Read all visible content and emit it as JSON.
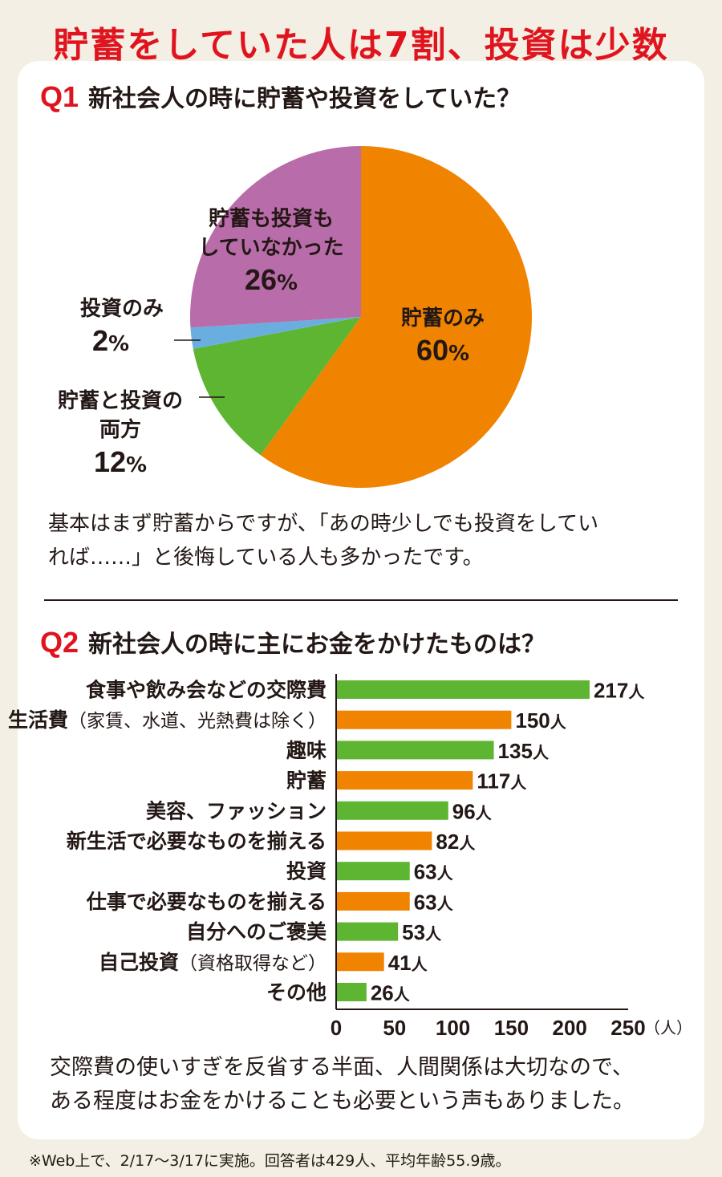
{
  "title": "貯蓄をしていた人は7割、投資は少数",
  "q1": {
    "num": "Q1",
    "text": "新社会人の時に貯蓄や投資をしていた？",
    "note_lines": [
      "基本はまず貯蓄からですが、「あの時少しでも投資をしてい",
      "れば……」と後悔している人も多かったです。"
    ]
  },
  "q2": {
    "num": "Q2",
    "text": "新社会人の時に主にお金をかけたものは？",
    "note_lines": [
      "交際費の使いすぎを反省する半面、人間関係は大切なので、",
      "ある程度はお金をかけることも必要という声もありました。"
    ]
  },
  "footnote": "※Web上で、2/17〜3/17に実施。回答者は429人、平均年齢55.9歳。",
  "chart_data": [
    {
      "type": "pie",
      "unit": "%",
      "slices": [
        {
          "label_lines": [
            "貯蓄のみ"
          ],
          "value": 60,
          "pct_text": "60",
          "color": "#f08300"
        },
        {
          "label_lines": [
            "貯蓄と投資の",
            "両方"
          ],
          "value": 12,
          "pct_text": "12",
          "color": "#5db531"
        },
        {
          "label_lines": [
            "投資のみ"
          ],
          "value": 2,
          "pct_text": "2",
          "color": "#6aaee0"
        },
        {
          "label_lines": [
            "貯蓄も投資も",
            "していなかった"
          ],
          "value": 26,
          "pct_text": "26",
          "color": "#b86ca9"
        }
      ]
    },
    {
      "type": "bar",
      "orientation": "horizontal",
      "unit": "人",
      "axis_unit": "（人）",
      "xlim": [
        0,
        250
      ],
      "ticks": [
        0,
        50,
        100,
        150,
        200,
        250
      ],
      "colors": [
        "#5db531",
        "#f08300"
      ],
      "categories": [
        {
          "main": "食事や飲み会などの交際費",
          "sub": ""
        },
        {
          "main": "生活費",
          "sub": "（家賃、水道、光熱費は除く）"
        },
        {
          "main": "趣味",
          "sub": ""
        },
        {
          "main": "貯蓄",
          "sub": ""
        },
        {
          "main": "美容、ファッション",
          "sub": ""
        },
        {
          "main": "新生活で必要なものを揃える",
          "sub": ""
        },
        {
          "main": "投資",
          "sub": ""
        },
        {
          "main": "仕事で必要なものを揃える",
          "sub": ""
        },
        {
          "main": "自分へのご褒美",
          "sub": ""
        },
        {
          "main": "自己投資",
          "sub": "（資格取得など）"
        },
        {
          "main": "その他",
          "sub": ""
        }
      ],
      "values": [
        217,
        150,
        135,
        117,
        96,
        82,
        63,
        63,
        53,
        41,
        26
      ]
    }
  ]
}
